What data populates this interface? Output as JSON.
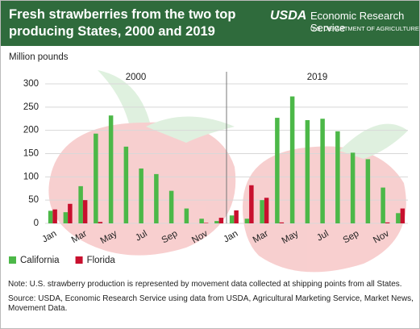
{
  "header": {
    "logo": "USDA",
    "org": "Economic Research Service",
    "dept": "U.S. DEPARTMENT OF AGRICULTURE"
  },
  "chart_data": {
    "type": "bar",
    "title": "Fresh strawberries from the two top producing States, 2000 and 2019",
    "y_label": "Million pounds",
    "year_labels": [
      "2000",
      "2019"
    ],
    "categories": [
      "Jan",
      null,
      "Mar",
      null,
      "May",
      null,
      "Jul",
      null,
      "Sep",
      null,
      "Nov",
      null,
      "Jan",
      null,
      "Mar",
      null,
      "May",
      null,
      "Jul",
      null,
      "Sep",
      null,
      "Nov",
      null
    ],
    "series": [
      {
        "name": "California",
        "color": "#4cb848",
        "values": [
          27,
          24,
          80,
          193,
          232,
          165,
          118,
          106,
          70,
          32,
          10,
          5,
          17,
          10,
          50,
          227,
          273,
          222,
          225,
          198,
          152,
          138,
          77,
          22
        ]
      },
      {
        "name": "Florida",
        "color": "#c8102e",
        "values": [
          30,
          42,
          50,
          3,
          0,
          0,
          0,
          0,
          0,
          0,
          1,
          12,
          28,
          82,
          55,
          2,
          0,
          0,
          0,
          0,
          0,
          0,
          2,
          32
        ]
      }
    ],
    "ylim": [
      0,
      300
    ],
    "yticks": [
      0,
      50,
      100,
      150,
      200,
      250,
      300
    ],
    "grid": true,
    "legend": "bottom-left"
  },
  "notes": {
    "note": "Note: U.S. strawberry production is represented by movement data collected at shipping points from all States.",
    "source": "Source: USDA, Economic Research Service using data from USDA, Agricultural Marketing Service, Market News, Movement Data."
  }
}
